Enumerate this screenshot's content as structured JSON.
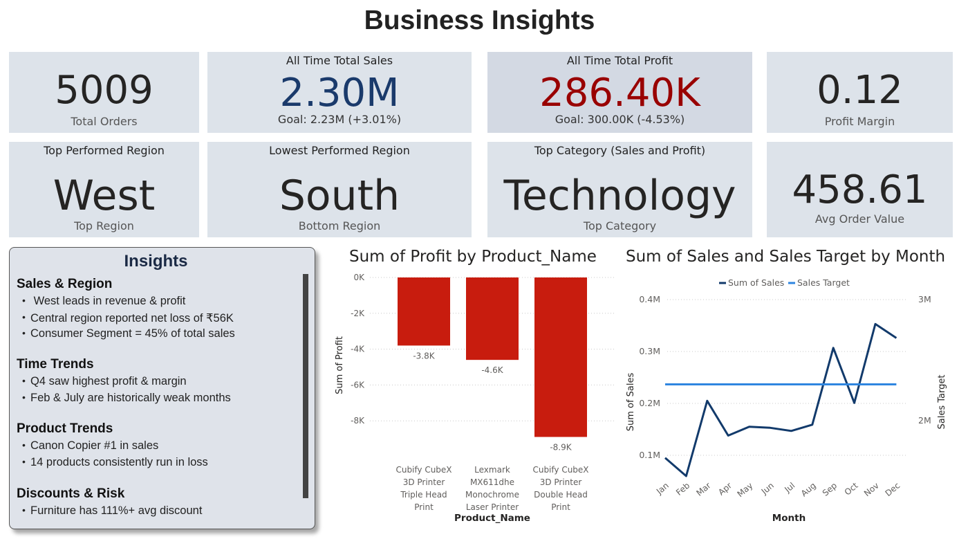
{
  "title": "Business Insights",
  "kpis": {
    "total_orders": {
      "value": "5009",
      "label": "Total Orders"
    },
    "total_sales": {
      "header": "All Time Total Sales",
      "value": "2.30M",
      "goal": "Goal: 2.23M (+3.01%)",
      "color": "#1a3a6b"
    },
    "total_profit": {
      "header": "All Time Total Profit",
      "value": "286.40K",
      "goal": "Goal: 300.00K (-4.53%)",
      "color": "#990000"
    },
    "profit_margin": {
      "value": "0.12",
      "label": "Profit Margin"
    },
    "top_region": {
      "header": "Top Performed Region",
      "value": "West",
      "label": "Top Region"
    },
    "lowest_region": {
      "header": "Lowest Performed Region",
      "value": "South",
      "label": "Bottom Region"
    },
    "top_category": {
      "header": "Top Category (Sales and Profit)",
      "value": "Technology",
      "label": "Top Category"
    },
    "avg_order": {
      "value": "458.61",
      "label": "Avg Order Value"
    }
  },
  "insights": {
    "title": "Insights",
    "sections": [
      {
        "title": "Sales & Region",
        "bullets": [
          " West leads in revenue & profit",
          "Central region reported net loss of ₹56K",
          "Consumer Segment = 45% of total sales"
        ]
      },
      {
        "title": "Time Trends",
        "bullets": [
          "Q4 saw highest profit & margin",
          "Feb & July are historically weak months"
        ]
      },
      {
        "title": "Product Trends",
        "bullets": [
          "Canon Copier #1 in sales",
          "14 products consistently run in loss"
        ]
      },
      {
        "title": "Discounts & Risk",
        "bullets": [
          "Furniture has 111%+ avg discount"
        ]
      }
    ]
  },
  "chart_data": [
    {
      "type": "bar",
      "title": "Sum of Profit by Product_Name",
      "xlabel": "Product_Name",
      "ylabel": "Sum of Profit",
      "categories": [
        [
          "Cubify CubeX",
          "3D Printer",
          "Triple Head",
          "Print"
        ],
        [
          "Lexmark",
          "MX611dhe",
          "Monochrome",
          "Laser Printer"
        ],
        [
          "Cubify CubeX",
          "3D Printer",
          "Double Head",
          "Print"
        ]
      ],
      "values": [
        -3800,
        -4600,
        -8900
      ],
      "data_labels": [
        "-3.8K",
        "-4.6K",
        "-8.9K"
      ],
      "ylim": [
        -9000,
        0
      ],
      "yticks": [
        0,
        -2000,
        -4000,
        -6000,
        -8000
      ],
      "ytick_labels": [
        "0K",
        "-2K",
        "-4K",
        "-6K",
        "-8K"
      ],
      "grid": true,
      "color": "#c81c0e"
    },
    {
      "type": "line",
      "title": "Sum of Sales and Sales Target by Month",
      "xlabel": "Month",
      "ylabel": "Sum of Sales",
      "ylabel2": "Sales Target",
      "categories": [
        "Jan",
        "Feb",
        "Mar",
        "Apr",
        "May",
        "Jun",
        "Jul",
        "Aug",
        "Sep",
        "Oct",
        "Nov",
        "Dec"
      ],
      "series": [
        {
          "name": "Sum of Sales",
          "axis": "left",
          "color": "#123a6b",
          "values": [
            0.095,
            0.06,
            0.205,
            0.138,
            0.155,
            0.153,
            0.147,
            0.159,
            0.307,
            0.201,
            0.353,
            0.326
          ]
        },
        {
          "name": "Sales Target",
          "axis": "right",
          "color": "#2f86e0",
          "values": [
            2.3,
            2.3,
            2.3,
            2.3,
            2.3,
            2.3,
            2.3,
            2.3,
            2.3,
            2.3,
            2.3,
            2.3
          ]
        }
      ],
      "y_ticks": [
        0.1,
        0.2,
        0.3,
        0.4
      ],
      "y_tick_labels": [
        "0.1M",
        "0.2M",
        "0.3M",
        "0.4M"
      ],
      "y2_ticks": [
        2,
        3
      ],
      "y2_tick_labels": [
        "2M",
        "3M"
      ],
      "ylim": [
        0.05,
        0.4
      ],
      "y2lim": [
        1.533,
        3.0
      ],
      "legend": "top-center",
      "grid": true
    }
  ]
}
